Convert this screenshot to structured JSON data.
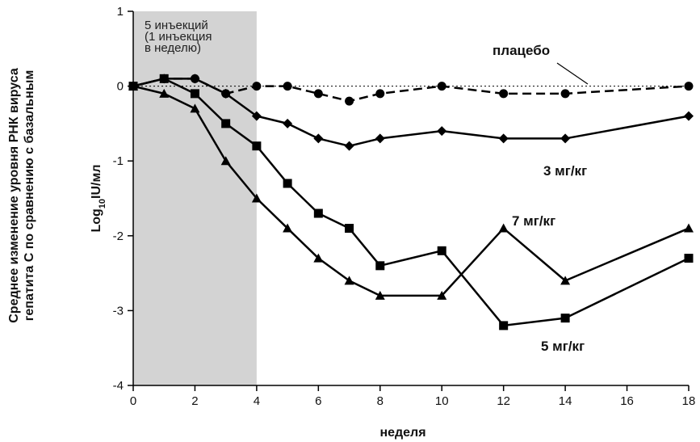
{
  "chart_data": {
    "type": "line",
    "ylabel_outer": [
      "Среднее изменение уровня РНК вируса",
      "гепатита С по сравнению с базальным"
    ],
    "ylabel_inner": {
      "base": "Log",
      "sub": "10",
      "rest": "IU/мл"
    },
    "xlabel": "неделя",
    "xlim": [
      0,
      18
    ],
    "ylim": [
      -4,
      1
    ],
    "x_ticks": [
      0,
      2,
      4,
      6,
      8,
      10,
      12,
      14,
      16,
      18
    ],
    "y_ticks": [
      1,
      0,
      -1,
      -2,
      -3,
      -4
    ],
    "shaded_region": {
      "x_range": [
        0,
        4
      ],
      "label_lines": [
        "5 инъекций",
        "(1 инъекция",
        "в неделю)"
      ],
      "color": "#d3d3d3"
    },
    "baseline": {
      "y": 0,
      "style": "dotted"
    },
    "series": [
      {
        "name": "плацебо",
        "marker": "circle",
        "line": "dashed",
        "x": [
          0,
          1,
          2,
          3,
          4,
          5,
          6,
          7,
          8,
          10,
          12,
          14,
          18
        ],
        "y": [
          0,
          0.1,
          0.1,
          -0.1,
          0,
          0,
          -0.1,
          -0.2,
          -0.1,
          0,
          -0.1,
          -0.1,
          0
        ]
      },
      {
        "name": "3 мг/кг",
        "marker": "diamond",
        "line": "solid",
        "x": [
          0,
          1,
          2,
          3,
          4,
          5,
          6,
          7,
          8,
          10,
          12,
          14,
          18
        ],
        "y": [
          0,
          0.1,
          0.1,
          -0.1,
          -0.4,
          -0.5,
          -0.7,
          -0.8,
          -0.7,
          -0.6,
          -0.7,
          -0.7,
          -0.4
        ]
      },
      {
        "name": "5 мг/кг",
        "marker": "square",
        "line": "solid",
        "x": [
          0,
          1,
          2,
          3,
          4,
          5,
          6,
          7,
          8,
          10,
          12,
          14,
          18
        ],
        "y": [
          0,
          0.1,
          -0.1,
          -0.5,
          -0.8,
          -1.3,
          -1.7,
          -1.9,
          -2.4,
          -2.2,
          -3.2,
          -3.1,
          -2.3
        ]
      },
      {
        "name": "7 мг/кг",
        "marker": "triangle",
        "line": "solid",
        "x": [
          0,
          1,
          2,
          3,
          4,
          5,
          6,
          7,
          8,
          10,
          12,
          14,
          18
        ],
        "y": [
          0,
          -0.1,
          -0.3,
          -1.0,
          -1.5,
          -1.9,
          -2.3,
          -2.6,
          -2.8,
          -2.8,
          -1.9,
          -2.6,
          -1.9
        ]
      }
    ]
  }
}
